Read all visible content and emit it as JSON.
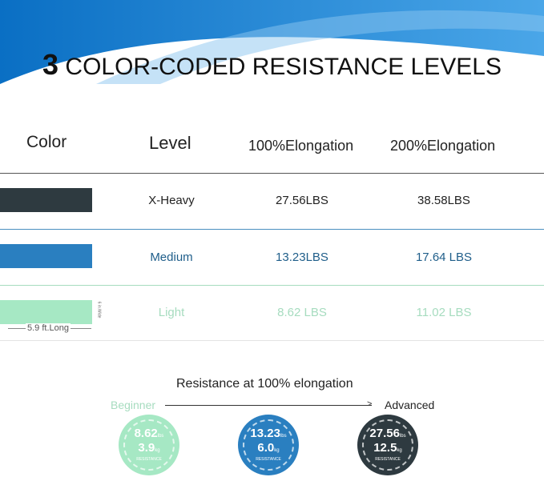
{
  "title": {
    "number": "3",
    "text": " COLOR-CODED RESISTANCE LEVELS"
  },
  "table": {
    "headers": [
      "Color",
      "Level",
      "100%Elongation",
      "200%Elongation"
    ],
    "rows": [
      {
        "level": "X-Heavy",
        "e100": "27.56LBS",
        "e200": "38.58LBS",
        "color": "#2e3a40",
        "text_color": "#222222"
      },
      {
        "level": "Medium",
        "e100": "13.23LBS",
        "e200": "17.64 LBS",
        "color": "#2a7fc0",
        "text_color": "#1f5e8a"
      },
      {
        "level": "Light",
        "e100": "8.62 LBS",
        "e200": "11.02 LBS",
        "color": "#a6e8c4",
        "text_color": "#a6dcbf"
      }
    ],
    "width_label": "6 in.Wide",
    "length_label": "5.9 ft.Long"
  },
  "scale": {
    "title": "Resistance at 100% elongation",
    "start": "Beginner",
    "end": "Advanced"
  },
  "badges": [
    {
      "lbs": "8.62",
      "kg": "3.9",
      "lbs_unit": "lbs",
      "kg_unit": "kg",
      "label": "RESISTANCE",
      "color": "#a6e8c4"
    },
    {
      "lbs": "13.23",
      "kg": "6.0",
      "lbs_unit": "lbs",
      "kg_unit": "kg",
      "label": "RESISTANCE",
      "color": "#2a7fc0"
    },
    {
      "lbs": "27.56",
      "kg": "12.5",
      "lbs_unit": "lbs",
      "kg_unit": "kg",
      "label": "RESISTANCE",
      "color": "#2e3a40"
    }
  ]
}
